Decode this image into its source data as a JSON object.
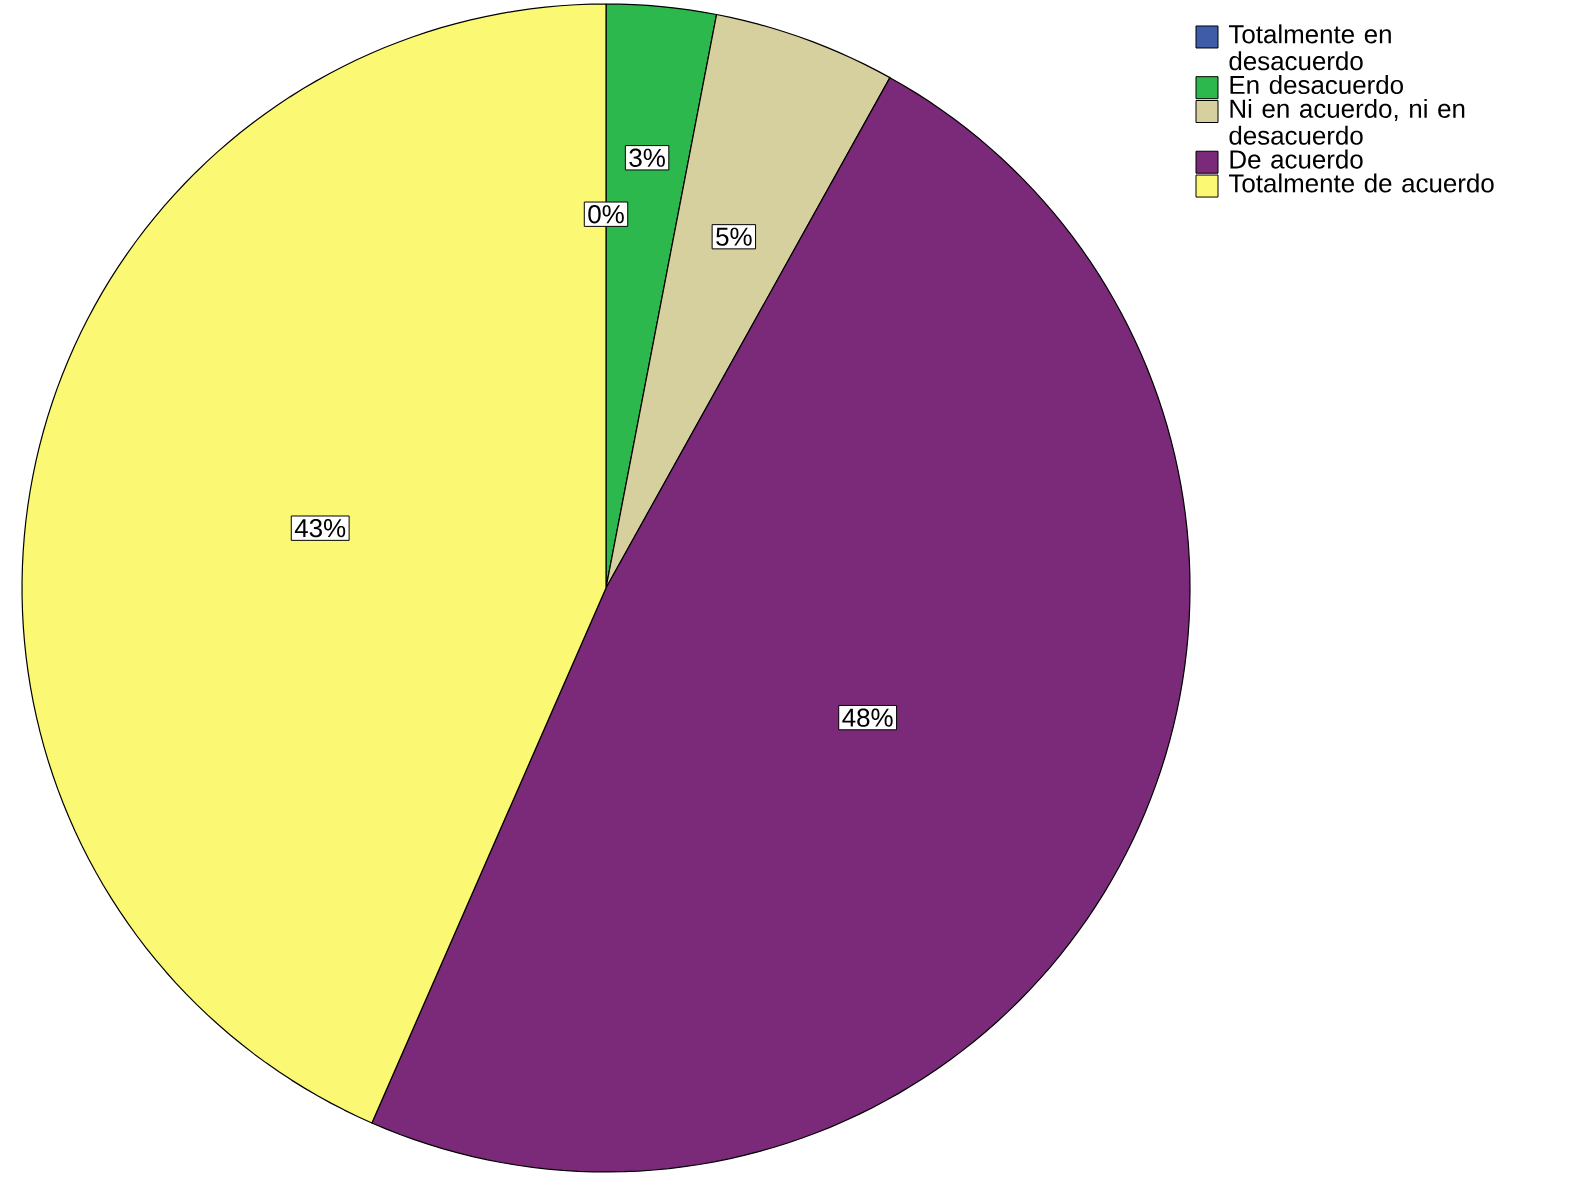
{
  "chart_data": {
    "type": "pie",
    "categories": [
      "Totalmente en desacuerdo",
      "En desacuerdo",
      "Ni en acuerdo, ni en desacuerdo",
      "De acuerdo",
      "Totalmente de acuerdo"
    ],
    "values": [
      0,
      3,
      5,
      48,
      43
    ],
    "colors": [
      "#3e5ca8",
      "#2db84d",
      "#d6cf9e",
      "#7b2979",
      "#fbf873"
    ],
    "value_labels": [
      "0%",
      "3%",
      "5%",
      "48%",
      "43%"
    ],
    "legend": "top right"
  }
}
